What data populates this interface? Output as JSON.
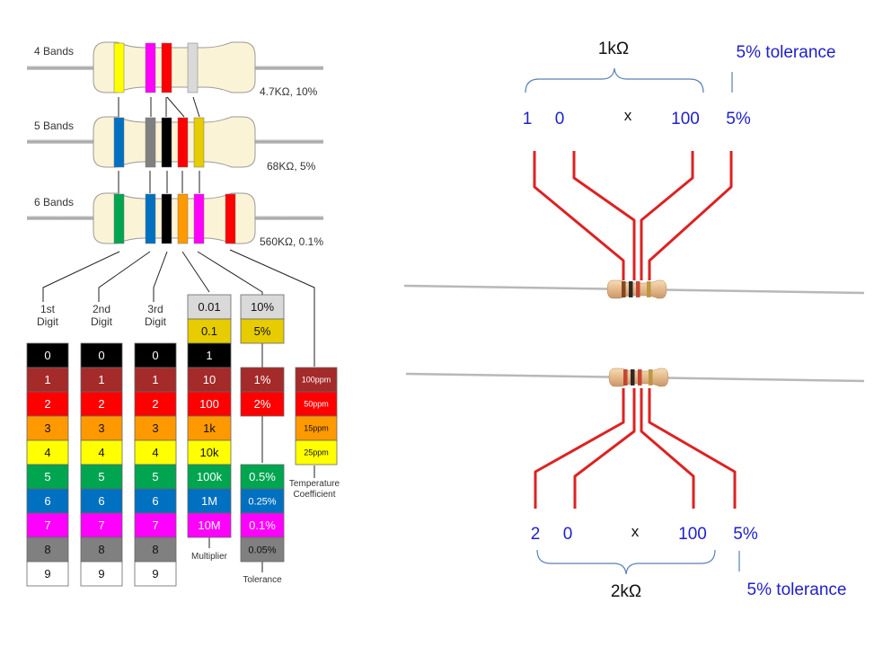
{
  "left_chart": {
    "band_labels": [
      "4 Bands",
      "5 Bands",
      "6 Bands"
    ],
    "resistor_values": [
      "4.7KΩ, 10%",
      "68KΩ, 5%",
      "560KΩ, 0.1%"
    ],
    "column_headers": [
      {
        "line1": "1st",
        "line2": "Digit"
      },
      {
        "line1": "2nd",
        "line2": "Digit"
      },
      {
        "line1": "3rd",
        "line2": "Digit"
      }
    ],
    "digit_rows": [
      {
        "label": "0",
        "color": "#000000"
      },
      {
        "label": "1",
        "color": "#a52a2a"
      },
      {
        "label": "2",
        "color": "#ff0000"
      },
      {
        "label": "3",
        "color": "#ff9900"
      },
      {
        "label": "4",
        "color": "#ffff00"
      },
      {
        "label": "5",
        "color": "#00a550"
      },
      {
        "label": "6",
        "color": "#0070c0"
      },
      {
        "label": "7",
        "color": "#ff00ff"
      },
      {
        "label": "8",
        "color": "#808080"
      },
      {
        "label": "9",
        "color": "#ffffff"
      }
    ],
    "multiplier_rows": [
      {
        "label": "0.01",
        "color": "#d9d9d9"
      },
      {
        "label": "0.1",
        "color": "#e6cc00"
      },
      {
        "label": "1",
        "color": "#000000"
      },
      {
        "label": "10",
        "color": "#a52a2a"
      },
      {
        "label": "100",
        "color": "#ff0000"
      },
      {
        "label": "1k",
        "color": "#ff9900"
      },
      {
        "label": "10k",
        "color": "#ffff00"
      },
      {
        "label": "100k",
        "color": "#00a550"
      },
      {
        "label": "1M",
        "color": "#0070c0"
      },
      {
        "label": "10M",
        "color": "#ff00ff"
      }
    ],
    "tolerance_rows": [
      {
        "label": "10%",
        "color": "#d9d9d9",
        "slot": 0
      },
      {
        "label": "5%",
        "color": "#e6cc00",
        "slot": 1
      },
      {
        "label": "1%",
        "color": "#a52a2a",
        "slot": 3
      },
      {
        "label": "2%",
        "color": "#ff0000",
        "slot": 4
      },
      {
        "label": "0.5%",
        "color": "#00a550",
        "slot": 7
      },
      {
        "label": "0.25%",
        "color": "#0070c0",
        "slot": 8
      },
      {
        "label": "0.1%",
        "color": "#ff00ff",
        "slot": 9
      },
      {
        "label": "0.05%",
        "color": "#808080",
        "slot": 10
      }
    ],
    "tempco_rows": [
      {
        "label": "100ppm",
        "color": "#a52a2a"
      },
      {
        "label": "50ppm",
        "color": "#ff0000"
      },
      {
        "label": "15ppm",
        "color": "#ff9900"
      },
      {
        "label": "25ppm",
        "color": "#ffff00"
      }
    ],
    "footer_labels": {
      "multiplier": "Multiplier",
      "tolerance": "Tolerance",
      "tempco_line1": "Temperature",
      "tempco_line2": "Coefficient"
    },
    "bands": {
      "four": [
        "#ffff00",
        "#ff00ff",
        "#ff0000",
        "#d9d9d9"
      ],
      "five": [
        "#0070c0",
        "#808080",
        "#000000",
        "#ff0000",
        "#e6cc00"
      ],
      "six": [
        "#00a550",
        "#0070c0",
        "#000000",
        "#ff9900",
        "#ff00ff",
        "#ff0000"
      ]
    }
  },
  "top_example": {
    "value_label": "1kΩ",
    "tolerance_label": "5% tolerance",
    "digits": [
      "1",
      "0",
      "x",
      "100",
      "5%"
    ]
  },
  "bottom_example": {
    "value_label": "2kΩ",
    "tolerance_label": "5% tolerance",
    "digits": [
      "2",
      "0",
      "x",
      "100",
      "5%"
    ]
  },
  "colors": {
    "lead_line": "#dd2222",
    "digit_blue": "#1f1fcc",
    "brace_blue": "#5b7fb5",
    "body_fill": "#fbf3d6"
  }
}
